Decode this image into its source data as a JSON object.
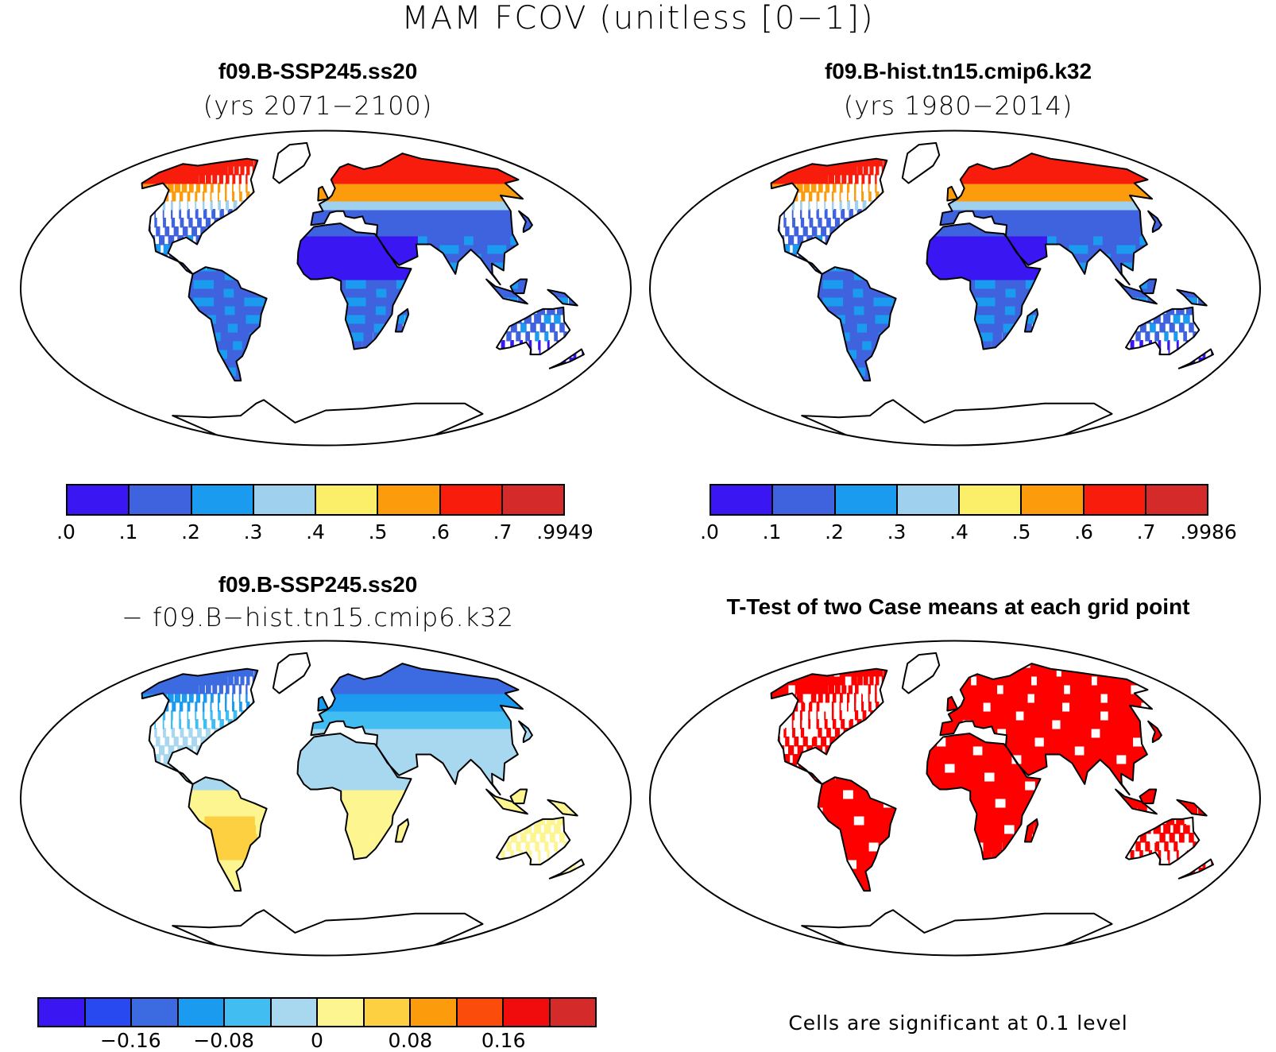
{
  "figure": {
    "title": "MAM FCOV (unitless [0−1])"
  },
  "colors": {
    "abs_levels": [
      "#3a16f2",
      "#3f62de",
      "#1b9bf0",
      "#9fd0ee",
      "#fbef6a",
      "#fc9c0c",
      "#f81c0c",
      "#d42a2a"
    ],
    "diff_levels": [
      "#3a16f2",
      "#2848f0",
      "#3c6ae0",
      "#1b9bf0",
      "#42bdf2",
      "#a8d8f0",
      "#fdf590",
      "#fcd040",
      "#fc9c0c",
      "#fc4c0c",
      "#f00c0c",
      "#d42a2a"
    ],
    "significant": "#ff0000"
  },
  "panels": [
    {
      "id": "top-left",
      "title": "f09.B-SSP245.ss20",
      "subtitle": "(yrs 2071−2100)",
      "colorbar_labels": [
        ".0",
        ".1",
        ".2",
        ".3",
        ".4",
        ".5",
        ".6",
        ".7",
        ".9949"
      ],
      "map_style": "abs"
    },
    {
      "id": "top-right",
      "title": "f09.B-hist.tn15.cmip6.k32",
      "subtitle": "(yrs 1980−2014)",
      "colorbar_labels": [
        ".0",
        ".1",
        ".2",
        ".3",
        ".4",
        ".5",
        ".6",
        ".7",
        ".9986"
      ],
      "map_style": "abs"
    },
    {
      "id": "bottom-left",
      "title": "f09.B-SSP245.ss20",
      "subtitle": "− f09.B−hist.tn15.cmip6.k32",
      "colorbar_labels": [
        "−0.16",
        "−0.08",
        "0",
        "0.08",
        "0.16"
      ],
      "map_style": "diff"
    },
    {
      "id": "bottom-right",
      "title": "T-Test of two Case means at each grid point",
      "note": "Cells are significant at 0.1 level",
      "map_style": "ttest"
    }
  ]
}
